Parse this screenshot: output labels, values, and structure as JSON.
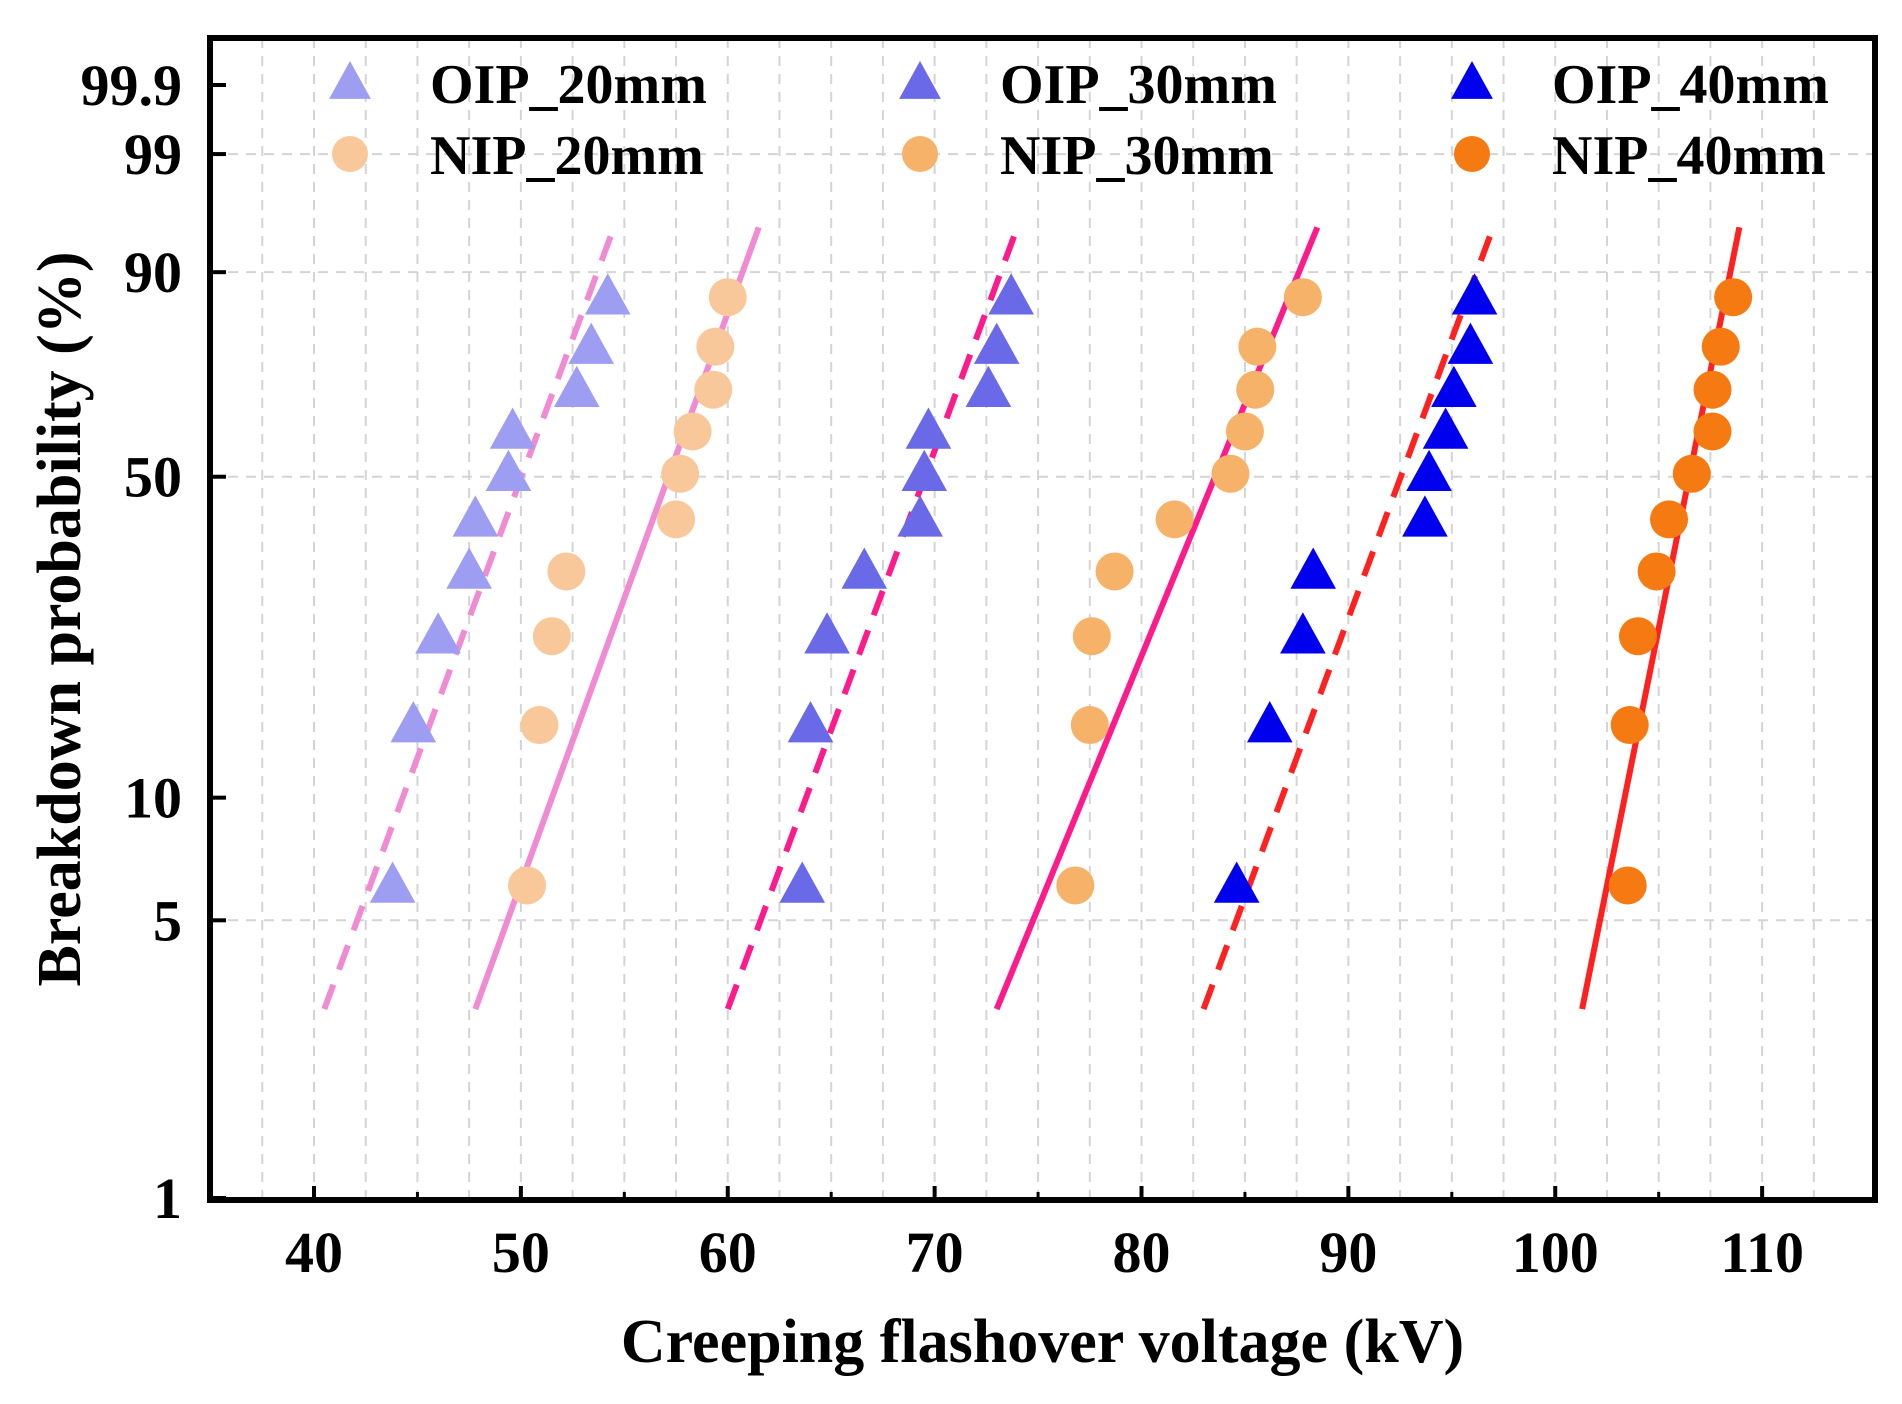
{
  "chart_data": {
    "type": "scatter",
    "title": "",
    "xlabel": "Creeping flashover voltage (kV)",
    "ylabel": "Breakdown probability (%)",
    "xlim": [
      35,
      115
    ],
    "xticks": [
      40,
      50,
      60,
      70,
      80,
      90,
      100,
      110
    ],
    "xtick_labels": [
      "40",
      "50",
      "60",
      "70",
      "80",
      "90",
      "100",
      "110"
    ],
    "y_scale": "weibull-probability",
    "ylim": [
      1,
      99.9
    ],
    "yticks": [
      1,
      5,
      10,
      50,
      90,
      99,
      99.9
    ],
    "ytick_labels": [
      "1",
      "5",
      "10",
      "50",
      "90",
      "99",
      "99.9"
    ],
    "grid": true,
    "legend_position": "top, three columns",
    "series": [
      {
        "name": "OIP_20mm",
        "label": "OIP_20mm",
        "marker": "triangle",
        "color": "#9d9df2",
        "points": [
          [
            43.8,
            6.1
          ],
          [
            44.8,
            14.9
          ],
          [
            46.0,
            23.8
          ],
          [
            47.5,
            32.8
          ],
          [
            47.8,
            41.7
          ],
          [
            49.4,
            50.6
          ],
          [
            49.6,
            59.5
          ],
          [
            52.7,
            68.5
          ],
          [
            53.4,
            77.4
          ],
          [
            54.2,
            86.3
          ]
        ],
        "fit": {
          "style": "dashed",
          "color": "#f08ad2",
          "x": [
            40.5,
            54.5
          ],
          "y": [
            3,
            95
          ]
        }
      },
      {
        "name": "NIP_20mm",
        "label": "NIP_20mm",
        "marker": "circle",
        "color": "#f8c89a",
        "points": [
          [
            50.3,
            6.1
          ],
          [
            50.9,
            14.9
          ],
          [
            51.5,
            23.8
          ],
          [
            52.2,
            32.8
          ],
          [
            57.5,
            41.7
          ],
          [
            57.7,
            50.6
          ],
          [
            58.3,
            59.5
          ],
          [
            59.3,
            68.5
          ],
          [
            59.4,
            77.4
          ],
          [
            60.0,
            86.3
          ]
        ],
        "fit": {
          "style": "solid",
          "color": "#f08ad2",
          "x": [
            47.8,
            61.5
          ],
          "y": [
            3,
            95
          ]
        }
      },
      {
        "name": "OIP_30mm",
        "label": "OIP_30mm",
        "marker": "triangle",
        "color": "#6a6ae8",
        "points": [
          [
            63.6,
            6.1
          ],
          [
            64.0,
            14.9
          ],
          [
            64.8,
            23.8
          ],
          [
            66.6,
            32.8
          ],
          [
            69.3,
            41.7
          ],
          [
            69.5,
            50.6
          ],
          [
            69.7,
            59.5
          ],
          [
            72.6,
            68.5
          ],
          [
            73.0,
            77.4
          ],
          [
            73.7,
            86.3
          ]
        ],
        "fit": {
          "style": "dashed",
          "color": "#ff1a8c",
          "x": [
            60.0,
            74.0
          ],
          "y": [
            3,
            95
          ]
        }
      },
      {
        "name": "NIP_30mm",
        "label": "NIP_30mm",
        "marker": "circle",
        "color": "#f7b26a",
        "points": [
          [
            76.8,
            6.1
          ],
          [
            77.5,
            14.9
          ],
          [
            77.6,
            23.8
          ],
          [
            78.7,
            32.8
          ],
          [
            81.6,
            41.7
          ],
          [
            84.3,
            50.6
          ],
          [
            85.0,
            59.5
          ],
          [
            85.5,
            68.5
          ],
          [
            85.6,
            77.4
          ],
          [
            87.8,
            86.3
          ]
        ],
        "fit": {
          "style": "solid",
          "color": "#ff1a8c",
          "x": [
            73.0,
            88.5
          ],
          "y": [
            3,
            95
          ]
        }
      },
      {
        "name": "OIP_40mm",
        "label": "OIP_40mm",
        "marker": "triangle",
        "color": "#0000ee",
        "points": [
          [
            84.6,
            6.1
          ],
          [
            86.2,
            14.9
          ],
          [
            87.8,
            23.8
          ],
          [
            88.3,
            32.8
          ],
          [
            93.7,
            41.7
          ],
          [
            93.9,
            50.6
          ],
          [
            94.7,
            59.5
          ],
          [
            95.1,
            68.5
          ],
          [
            95.9,
            77.4
          ],
          [
            96.1,
            86.3
          ]
        ],
        "fit": {
          "style": "dashed",
          "color": "#ff2020",
          "x": [
            83.0,
            97.0
          ],
          "y": [
            3,
            95
          ]
        }
      },
      {
        "name": "NIP_40mm",
        "label": "NIP_40mm",
        "marker": "circle",
        "color": "#f57a12",
        "points": [
          [
            103.5,
            6.1
          ],
          [
            103.6,
            14.9
          ],
          [
            104.0,
            23.8
          ],
          [
            104.9,
            32.8
          ],
          [
            105.5,
            41.7
          ],
          [
            106.6,
            50.6
          ],
          [
            107.6,
            59.5
          ],
          [
            107.6,
            68.5
          ],
          [
            108.0,
            77.4
          ],
          [
            108.6,
            86.3
          ]
        ],
        "fit": {
          "style": "solid",
          "color": "#ff2020",
          "x": [
            101.3,
            108.9
          ],
          "y": [
            3,
            95
          ]
        }
      }
    ]
  }
}
